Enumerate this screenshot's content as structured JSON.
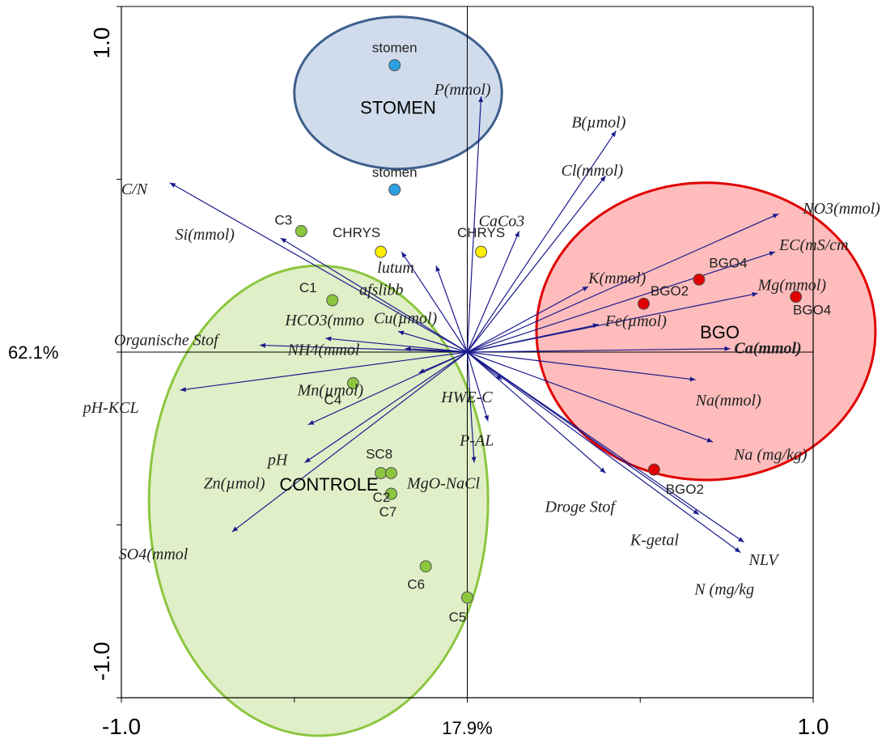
{
  "chart_data": {
    "type": "scatter",
    "subtype": "pca-biplot",
    "xlim": [
      -1.0,
      1.0
    ],
    "ylim": [
      -1.0,
      1.0
    ],
    "x_ticks": [
      "-1.0",
      "1.0"
    ],
    "y_ticks": [
      "1.0",
      "-1.0"
    ],
    "x_axis_label": "17.9%",
    "y_axis_label": "62.1%",
    "colors": {
      "arrow": "#1a1a8c",
      "stomen": "#2aa0e0",
      "chrys": "#ffee00",
      "controle": "#8cc63f",
      "bgo": "#e00000",
      "ca_label": "#e00000"
    },
    "groups": [
      {
        "name": "STOMEN",
        "fill": "#d0dcec",
        "stroke": "#3e5f8c",
        "cx": -0.2,
        "cy": 0.75,
        "rx": 0.3,
        "ry": 0.22
      },
      {
        "name": "BGO",
        "fill": "#ffbcbc",
        "stroke": "#e00000",
        "cx": 0.69,
        "cy": 0.06,
        "rx": 0.49,
        "ry": 0.43
      },
      {
        "name": "CONTROLE",
        "fill": "#e0efc8",
        "stroke": "#8cc63f",
        "cx": -0.43,
        "cy": -0.43,
        "rx": 0.49,
        "ry": 0.68
      }
    ],
    "samples": [
      {
        "label": "stomen",
        "x": -0.21,
        "y": 0.83,
        "group": "stomen"
      },
      {
        "label": "stomen",
        "x": -0.21,
        "y": 0.47,
        "group": "stomen"
      },
      {
        "label": "CHRYS",
        "x": -0.25,
        "y": 0.29,
        "group": "chrys"
      },
      {
        "label": "CHRYS",
        "x": 0.04,
        "y": 0.29,
        "group": "chrys"
      },
      {
        "label": "C3",
        "x": -0.48,
        "y": 0.35,
        "group": "controle"
      },
      {
        "label": "C1",
        "x": -0.39,
        "y": 0.15,
        "group": "controle"
      },
      {
        "label": "C4",
        "x": -0.33,
        "y": -0.09,
        "group": "controle"
      },
      {
        "label": "SC8",
        "x": -0.25,
        "y": -0.35,
        "group": "controle"
      },
      {
        "label": "",
        "x": -0.22,
        "y": -0.35,
        "group": "controle"
      },
      {
        "label": "C2",
        "x": -0.22,
        "y": -0.41,
        "group": "controle"
      },
      {
        "label": "C7",
        "x": -0.22,
        "y": -0.41,
        "group": "controle"
      },
      {
        "label": "C6",
        "x": -0.12,
        "y": -0.62,
        "group": "controle"
      },
      {
        "label": "C5",
        "x": 0.0,
        "y": -0.71,
        "group": "controle"
      },
      {
        "label": "BGO4",
        "x": 0.67,
        "y": 0.21,
        "group": "bgo"
      },
      {
        "label": "BGO2",
        "x": 0.51,
        "y": 0.14,
        "group": "bgo"
      },
      {
        "label": "BGO4",
        "x": 0.95,
        "y": 0.16,
        "group": "bgo"
      },
      {
        "label": "BGO2",
        "x": 0.54,
        "y": -0.34,
        "group": "bgo"
      }
    ],
    "loadings": [
      {
        "label": "P(mmol)",
        "x": 0.04,
        "y": 0.74
      },
      {
        "label": "B(µmol)",
        "x": 0.43,
        "y": 0.64
      },
      {
        "label": "Cl(mmol)",
        "x": 0.4,
        "y": 0.51
      },
      {
        "label": "C/N",
        "x": -0.86,
        "y": 0.49
      },
      {
        "label": "NO3(mmol)",
        "x": 0.9,
        "y": 0.4
      },
      {
        "label": "EC(mS/cm",
        "x": 0.89,
        "y": 0.29
      },
      {
        "label": "CaCo3",
        "x": 0.15,
        "y": 0.35
      },
      {
        "label": "Si(mmol)",
        "x": -0.54,
        "y": 0.33
      },
      {
        "label": "lutum",
        "x": -0.19,
        "y": 0.29
      },
      {
        "label": "afslibb",
        "x": -0.09,
        "y": 0.25
      },
      {
        "label": "K(mmol)",
        "x": 0.35,
        "y": 0.19
      },
      {
        "label": "Mg(mmol)",
        "x": 0.84,
        "y": 0.17
      },
      {
        "label": "Fe(µmol)",
        "x": 0.38,
        "y": 0.08
      },
      {
        "label": "Cu(µmol)",
        "x": -0.2,
        "y": 0.06
      },
      {
        "label": "HCO3(mmo",
        "x": -0.41,
        "y": 0.04
      },
      {
        "label": "NH4(mmol",
        "x": -0.18,
        "y": 0.01
      },
      {
        "label": "Organische Stof",
        "x": -0.6,
        "y": 0.02
      },
      {
        "label": "Ca(mmol)",
        "x": 0.76,
        "y": 0.01
      },
      {
        "label": "Mn(µmol)",
        "x": -0.14,
        "y": -0.06
      },
      {
        "label": "HWE-C",
        "x": 0.1,
        "y": -0.08
      },
      {
        "label": "pH-KCL",
        "x": -0.83,
        "y": -0.11
      },
      {
        "label": "Na(mmol)",
        "x": 0.66,
        "y": -0.08
      },
      {
        "label": "P-AL",
        "x": 0.06,
        "y": -0.2
      },
      {
        "label": "pH",
        "x": -0.46,
        "y": -0.21
      },
      {
        "label": "Na (mg/kg)",
        "x": 0.71,
        "y": -0.26
      },
      {
        "label": "Zn(µmol)",
        "x": -0.47,
        "y": -0.32
      },
      {
        "label": "MgO-NaCl",
        "x": 0.02,
        "y": -0.32
      },
      {
        "label": "Droge Stof",
        "x": 0.4,
        "y": -0.35
      },
      {
        "label": "SO4(mmol",
        "x": -0.68,
        "y": -0.52
      },
      {
        "label": "K-getal",
        "x": 0.67,
        "y": -0.47
      },
      {
        "label": "NLV",
        "x": 0.8,
        "y": -0.55
      },
      {
        "label": "N (mg/kg",
        "x": 0.79,
        "y": -0.58
      }
    ]
  }
}
